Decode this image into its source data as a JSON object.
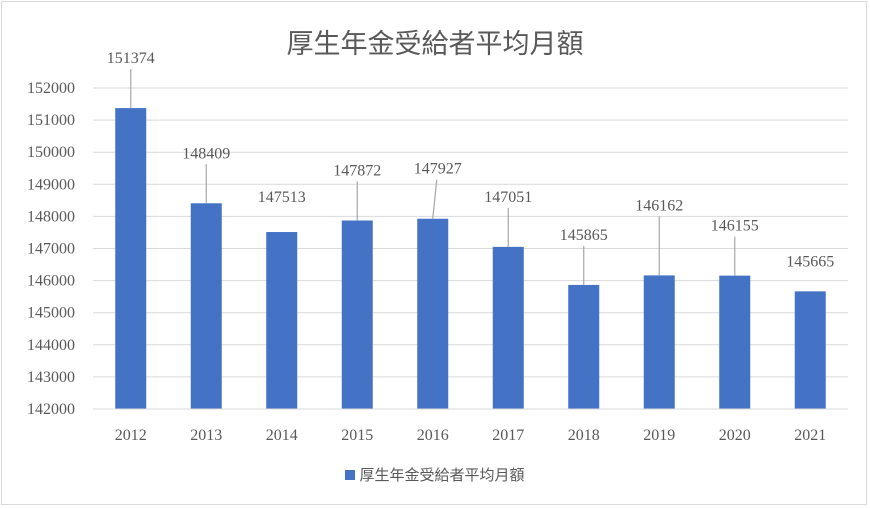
{
  "chart_data": {
    "type": "bar",
    "title": "厚生年金受給者平均月額",
    "categories": [
      "2012",
      "2013",
      "2014",
      "2015",
      "2016",
      "2017",
      "2018",
      "2019",
      "2020",
      "2021"
    ],
    "series": [
      {
        "name": "厚生年金受給者平均月額",
        "values": [
          151374,
          148409,
          147513,
          147872,
          147927,
          147051,
          145865,
          146162,
          146155,
          145665
        ],
        "color": "#4472c4"
      }
    ],
    "ylim": [
      142000,
      152000
    ],
    "yticks": [
      142000,
      143000,
      144000,
      145000,
      146000,
      147000,
      148000,
      149000,
      150000,
      151000,
      152000
    ],
    "grid": true,
    "legend_position": "bottom",
    "data_labels": true
  }
}
